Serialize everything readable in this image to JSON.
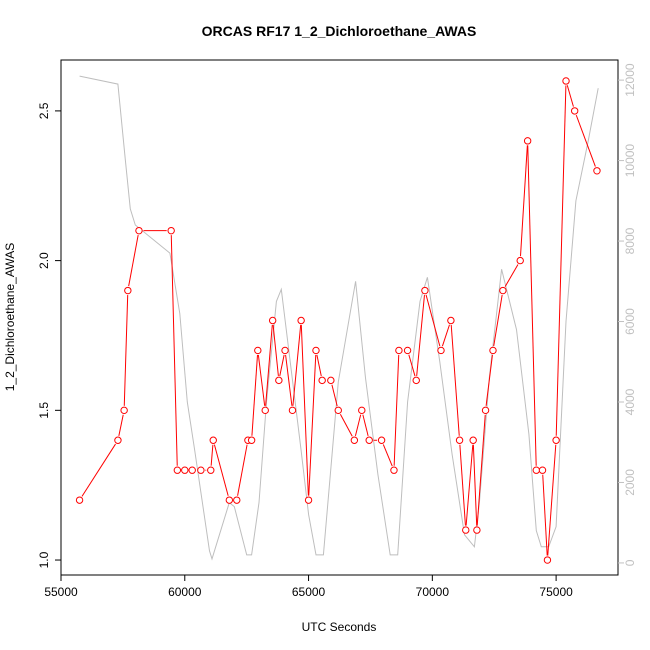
{
  "chart_data": {
    "type": "line",
    "title": "ORCAS RF17 1_2_Dichloroethane_AWAS",
    "xlabel": "UTC Seconds",
    "ylabel": "1_2_Dichloroethane_AWAS",
    "xlim": [
      55000,
      77500
    ],
    "ylim": [
      0.95,
      2.67
    ],
    "y2lim": [
      -300,
      12500
    ],
    "x_ticks": [
      55000,
      60000,
      65000,
      70000,
      75000
    ],
    "x_tick_labels": [
      "55000",
      "60000",
      "65000",
      "70000",
      "75000"
    ],
    "y_ticks": [
      1.0,
      1.5,
      2.0,
      2.5
    ],
    "y_tick_labels": [
      "1.0",
      "1.5",
      "2.0",
      "2.5"
    ],
    "y2_ticks": [
      0,
      2000,
      4000,
      6000,
      8000,
      10000,
      12000
    ],
    "y2_tick_labels": [
      "0",
      "2000",
      "4000",
      "6000",
      "8000",
      "10000",
      "12000"
    ],
    "grid": false,
    "series": [
      {
        "color": "#ff0000",
        "axis": "left",
        "marker": "open-circle",
        "x": [
          55750,
          57300,
          57550,
          57700,
          58150,
          59450,
          59700,
          60000,
          60300,
          60650,
          61050,
          61150,
          61800,
          62100,
          62550,
          62700,
          62950,
          63250,
          63550,
          63800,
          64050,
          64350,
          64700,
          65000,
          65300,
          65550,
          65900,
          66200,
          66850,
          67150,
          67450,
          67950,
          68450,
          68650,
          69000,
          69350,
          69700,
          70350,
          70750,
          71100,
          71350,
          71650,
          71800,
          72150,
          72450,
          72850,
          73550,
          73850,
          74200,
          74450,
          74650,
          75000,
          75400,
          75750,
          76650
        ],
        "y": [
          1.2,
          1.4,
          1.5,
          1.9,
          2.1,
          2.1,
          1.3,
          1.3,
          1.3,
          1.3,
          1.3,
          1.4,
          1.2,
          1.2,
          1.4,
          1.4,
          1.7,
          1.5,
          1.8,
          1.6,
          1.7,
          1.5,
          1.8,
          1.2,
          1.7,
          1.6,
          1.6,
          1.5,
          1.4,
          1.5,
          1.4,
          1.4,
          1.3,
          1.7,
          1.7,
          1.6,
          1.9,
          1.7,
          1.8,
          1.4,
          1.1,
          1.4,
          1.1,
          1.5,
          1.7,
          1.9,
          2.0,
          2.4,
          1.3,
          1.3,
          1.0,
          1.4,
          2.6,
          2.5,
          2.3
        ]
      },
      {
        "color": "#bebebe",
        "axis": "right",
        "x": [
          55750,
          57300,
          57600,
          57800,
          58000,
          59400,
          59800,
          60100,
          60400,
          61000,
          61100,
          61800,
          62000,
          62500,
          62700,
          63000,
          63300,
          63700,
          63900,
          64300,
          64700,
          65000,
          65300,
          65600,
          66200,
          66900,
          67300,
          67800,
          68300,
          68600,
          69000,
          69500,
          69800,
          70300,
          70800,
          71300,
          71700,
          71900,
          72300,
          72800,
          73400,
          73900,
          74200,
          74400,
          74700,
          75000,
          75400,
          75800,
          76300,
          76700
        ],
        "y": [
          12100,
          11900,
          10000,
          8800,
          8400,
          7700,
          6200,
          4000,
          2800,
          300,
          100,
          1500,
          1400,
          200,
          200,
          1500,
          4000,
          6500,
          6800,
          4800,
          2800,
          1200,
          200,
          200,
          4500,
          7000,
          4600,
          2200,
          200,
          200,
          4000,
          6500,
          7100,
          5000,
          2700,
          700,
          400,
          1500,
          4600,
          7300,
          5800,
          3200,
          800,
          400,
          400,
          900,
          6000,
          9000,
          10500,
          11800
        ]
      }
    ]
  }
}
